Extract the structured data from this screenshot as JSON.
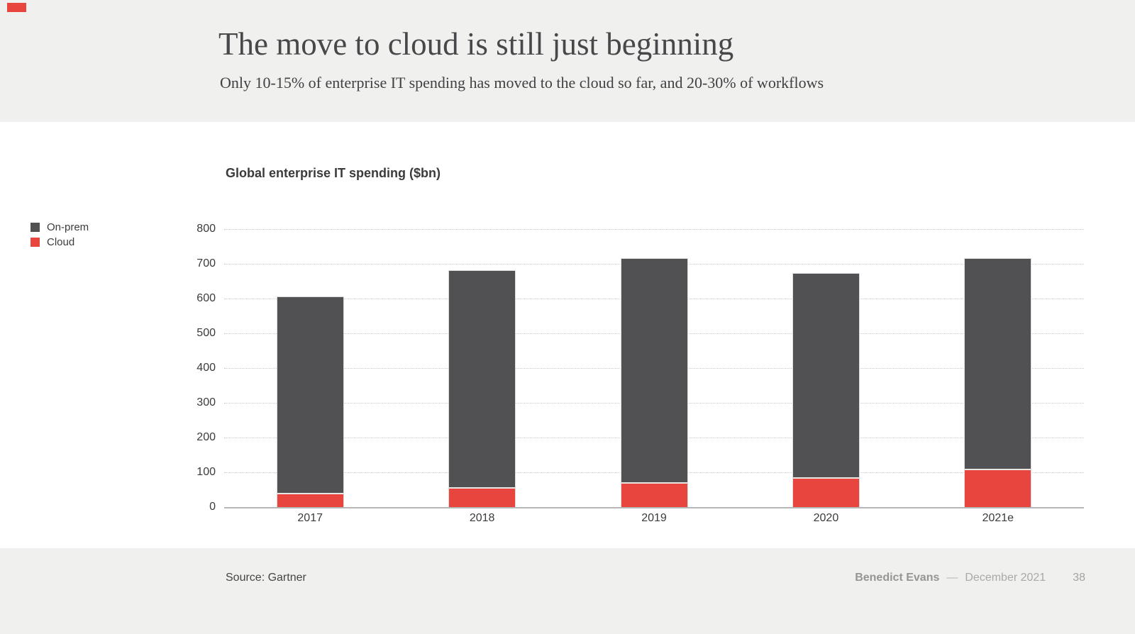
{
  "slide": {
    "title": "The move to cloud is still just beginning",
    "subtitle": "Only 10-15% of enterprise IT spending has moved to the cloud so far, and 20-30% of workflows",
    "accent_color": "#e8453f"
  },
  "chart_data": {
    "type": "bar",
    "stacked": true,
    "title": "Global enterprise IT spending ($bn)",
    "categories": [
      "2017",
      "2018",
      "2019",
      "2020",
      "2021e"
    ],
    "series": [
      {
        "name": "On-prem",
        "color": "#515153",
        "values": [
          565,
          623,
          643,
          586,
          605
        ]
      },
      {
        "name": "Cloud",
        "color": "#e8453f",
        "values": [
          40,
          57,
          72,
          86,
          110
        ]
      }
    ],
    "totals": [
      605,
      680,
      715,
      672,
      715
    ],
    "xlabel": "",
    "ylabel": "",
    "ylim": [
      0,
      800
    ],
    "ytick_step": 100,
    "grid": "horizontal-dotted",
    "legend_position": "left"
  },
  "footer": {
    "source": "Source: Gartner",
    "author": "Benedict Evans",
    "separator": "—",
    "date": "December 2021",
    "page_number": "38"
  }
}
